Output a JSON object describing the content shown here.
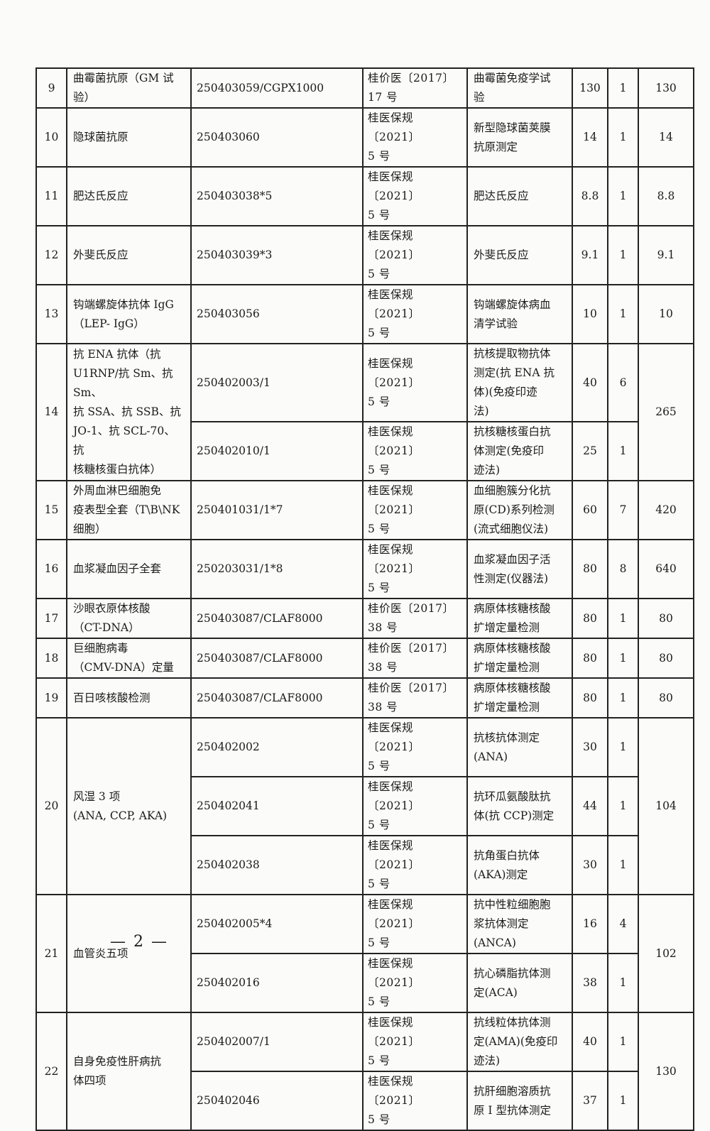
{
  "rows": [
    {
      "no": "9",
      "name": "曲霉菌抗原（GM 试\n验）",
      "total": "130",
      "subs": [
        {
          "code": "250403059/CGPX1000",
          "doc": "桂价医〔2017〕\n17 号",
          "desc": "曲霉菌免疫学试\n验",
          "price": "130",
          "qty": "1"
        }
      ]
    },
    {
      "no": "10",
      "name": "隐球菌抗原",
      "total": "14",
      "subs": [
        {
          "code": "250403060",
          "doc": "桂医保规〔2021〕\n5 号",
          "desc": "新型隐球菌荚膜\n抗原测定",
          "price": "14",
          "qty": "1"
        }
      ]
    },
    {
      "no": "11",
      "name": "肥达氏反应",
      "total": "8.8",
      "subs": [
        {
          "code": "250403038*5",
          "doc": "桂医保规〔2021〕\n5 号",
          "desc": "肥达氏反应",
          "price": "8.8",
          "qty": "1"
        }
      ]
    },
    {
      "no": "12",
      "name": "外斐氏反应",
      "total": "9.1",
      "subs": [
        {
          "code": "250403039*3",
          "doc": "桂医保规〔2021〕\n5 号",
          "desc": "外斐氏反应",
          "price": "9.1",
          "qty": "1"
        }
      ]
    },
    {
      "no": "13",
      "name": "钩端螺旋体抗体 IgG\n（LEP- IgG）",
      "total": "10",
      "subs": [
        {
          "code": "250403056",
          "doc": "桂医保规〔2021〕\n5 号",
          "desc": "钩端螺旋体病血\n清学试验",
          "price": "10",
          "qty": "1"
        }
      ]
    },
    {
      "no": "14",
      "name": "抗 ENA 抗体（抗\nU1RNP/抗 Sm、抗 Sm、\n抗 SSA、抗 SSB、抗\nJO-1、抗 SCL-70、抗\n核糖核蛋白抗体）",
      "total": "265",
      "subs": [
        {
          "code": "250402003/1",
          "doc": "桂医保规〔2021〕\n5 号",
          "desc": "抗核提取物抗体\n测定(抗 ENA 抗\n体)(免疫印迹\n法)",
          "price": "40",
          "qty": "6"
        },
        {
          "code": "250402010/1",
          "doc": "桂医保规〔2021〕\n5 号",
          "desc": "抗核糖核蛋白抗\n体测定(免疫印\n迹法)",
          "price": "25",
          "qty": "1"
        }
      ]
    },
    {
      "no": "15",
      "name": "外周血淋巴细胞免\n疫表型全套（T\\B\\NK\n细胞）",
      "total": "420",
      "subs": [
        {
          "code": "250401031/1*7",
          "doc": "桂医保规〔2021〕\n5 号",
          "desc": "血细胞簇分化抗\n原(CD)系列检测\n(流式细胞仪法)",
          "price": "60",
          "qty": "7"
        }
      ]
    },
    {
      "no": "16",
      "name": "血浆凝血因子全套",
      "total": "640",
      "subs": [
        {
          "code": "250203031/1*8",
          "doc": "桂医保规〔2021〕\n5 号",
          "desc": "血浆凝血因子活\n性测定(仪器法)",
          "price": "80",
          "qty": "8"
        }
      ]
    },
    {
      "no": "17",
      "name": "沙眼衣原体核酸\n（CT-DNA）",
      "total": "80",
      "subs": [
        {
          "code": "250403087/CLAF8000",
          "doc": "桂价医〔2017〕\n38 号",
          "desc": "病原体核糖核酸\n扩增定量检测",
          "price": "80",
          "qty": "1"
        }
      ]
    },
    {
      "no": "18",
      "name": "巨细胞病毒\n（CMV-DNA）定量",
      "total": "80",
      "subs": [
        {
          "code": "250403087/CLAF8000",
          "doc": "桂价医〔2017〕\n38 号",
          "desc": "病原体核糖核酸\n扩增定量检测",
          "price": "80",
          "qty": "1"
        }
      ]
    },
    {
      "no": "19",
      "name": "百日咳核酸检测",
      "total": "80",
      "subs": [
        {
          "code": "250403087/CLAF8000",
          "doc": "桂价医〔2017〕\n38 号",
          "desc": "病原体核糖核酸\n扩增定量检测",
          "price": "80",
          "qty": "1"
        }
      ]
    },
    {
      "no": "20",
      "name": "风湿 3 项\n(ANA, CCP, AKA)",
      "total": "104",
      "subs": [
        {
          "code": "250402002",
          "doc": "桂医保规〔2021〕\n5 号",
          "desc": "抗核抗体测定\n(ANA)",
          "price": "30",
          "qty": "1"
        },
        {
          "code": "250402041",
          "doc": "桂医保规〔2021〕\n5 号",
          "desc": "抗环瓜氨酸肽抗\n体(抗 CCP)测定",
          "price": "44",
          "qty": "1"
        },
        {
          "code": "250402038",
          "doc": "桂医保规〔2021〕\n5 号",
          "desc": "抗角蛋白抗体\n(AKA)测定",
          "price": "30",
          "qty": "1"
        }
      ]
    },
    {
      "no": "21",
      "name": "血管炎五项",
      "total": "102",
      "subs": [
        {
          "code": "250402005*4",
          "doc": "桂医保规〔2021〕\n5 号",
          "desc": "抗中性粒细胞胞\n浆抗体测定\n(ANCA)",
          "price": "16",
          "qty": "4"
        },
        {
          "code": "250402016",
          "doc": "桂医保规〔2021〕\n5 号",
          "desc": "抗心磷脂抗体测\n定(ACA)",
          "price": "38",
          "qty": "1"
        }
      ]
    },
    {
      "no": "22",
      "name": "自身免疫性肝病抗\n体四项",
      "total": "130",
      "subs": [
        {
          "code": "250402007/1",
          "doc": "桂医保规〔2021〕\n5 号",
          "desc": "抗线粒体抗体测\n定(AMA)(免疫印\n迹法)",
          "price": "40",
          "qty": "1"
        },
        {
          "code": "250402046",
          "doc": "桂医保规〔2021〕\n5 号",
          "desc": "抗肝细胞溶质抗\n原 I 型抗体测定",
          "price": "37",
          "qty": "1"
        }
      ]
    }
  ],
  "footer": {
    "page_number": "— 2 —"
  }
}
